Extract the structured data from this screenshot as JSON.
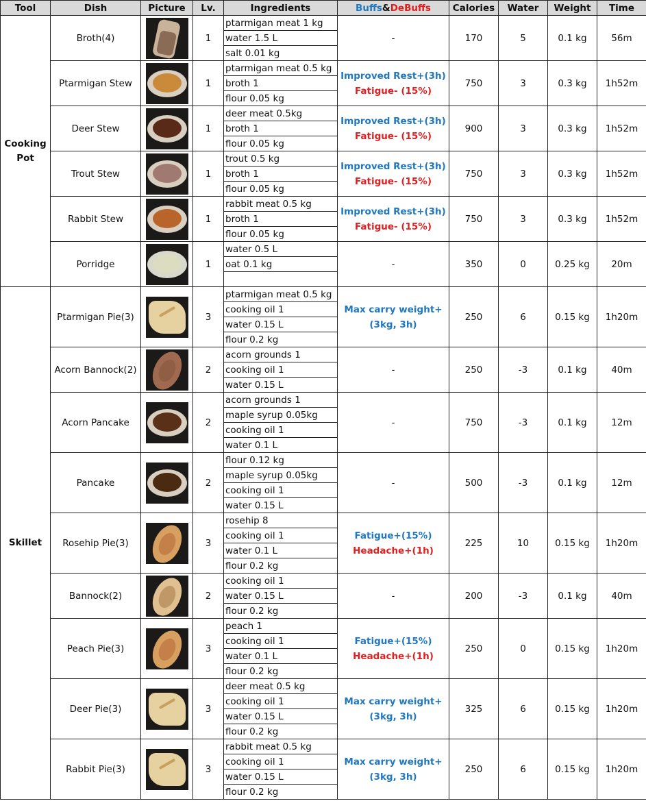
{
  "table": {
    "columns": [
      "Tool",
      "Dish",
      "Picture",
      "Lv.",
      "Ingredients",
      [
        "Buffs",
        "&",
        "DeBuffs"
      ],
      "Calories",
      "Water",
      "Weight",
      "Time"
    ],
    "groups": [
      {
        "tool": "Cooking Pot",
        "dishes": [
          {
            "name": "Broth(4)",
            "level": 1,
            "ingredients": [
              "ptarmigan meat 1 kg",
              "water 1.5 L",
              "salt 0.01 kg"
            ],
            "effects": [
              {
                "text": "-"
              }
            ],
            "calories": 170,
            "water": 5,
            "weight": "0.1 kg",
            "time": "56m"
          },
          {
            "name": "Ptarmigan Stew",
            "level": 1,
            "ingredients": [
              "ptarmigan meat 0.5 kg",
              "broth 1",
              "flour 0.05 kg"
            ],
            "effects": [
              {
                "text": "Improved Rest+(3h)",
                "kind": "buff"
              },
              {
                "text": "Fatigue- (15%)",
                "kind": "debuff"
              }
            ],
            "calories": 750,
            "water": 3,
            "weight": "0.3 kg",
            "time": "1h52m"
          },
          {
            "name": "Deer Stew",
            "level": 1,
            "ingredients": [
              "deer meat 0.5kg",
              "broth 1",
              "flour 0.05 kg"
            ],
            "effects": [
              {
                "text": "Improved Rest+(3h)",
                "kind": "buff"
              },
              {
                "text": "Fatigue- (15%)",
                "kind": "debuff"
              }
            ],
            "calories": 900,
            "water": 3,
            "weight": "0.3 kg",
            "time": "1h52m"
          },
          {
            "name": "Trout Stew",
            "level": 1,
            "ingredients": [
              "trout 0.5 kg",
              "broth 1",
              "flour 0.05 kg"
            ],
            "effects": [
              {
                "text": "Improved Rest+(3h)",
                "kind": "buff"
              },
              {
                "text": "Fatigue- (15%)",
                "kind": "debuff"
              }
            ],
            "calories": 750,
            "water": 3,
            "weight": "0.3 kg",
            "time": "1h52m"
          },
          {
            "name": "Rabbit Stew",
            "level": 1,
            "ingredients": [
              "rabbit meat 0.5 kg",
              "broth 1",
              "flour 0.05 kg"
            ],
            "effects": [
              {
                "text": "Improved Rest+(3h)",
                "kind": "buff"
              },
              {
                "text": "Fatigue- (15%)",
                "kind": "debuff"
              }
            ],
            "calories": 750,
            "water": 3,
            "weight": "0.3 kg",
            "time": "1h52m"
          },
          {
            "name": "Porridge",
            "level": 1,
            "ingredients": [
              "water 0.5 L",
              "oat 0.1 kg"
            ],
            "effects": [
              {
                "text": "-"
              }
            ],
            "calories": 350,
            "water": 0,
            "weight": "0.25 kg",
            "time": "20m"
          }
        ]
      },
      {
        "tool": "Skillet",
        "dishes": [
          {
            "name": "Ptarmigan Pie(3)",
            "level": 3,
            "ingredients": [
              "ptarmigan meat 0.5 kg",
              "cooking oil 1",
              "water 0.15 L",
              "flour 0.2 kg"
            ],
            "effects": [
              {
                "text": "Max carry weight+",
                "kind": "buff"
              },
              {
                "text": "(3kg, 3h)",
                "kind": "buff"
              }
            ],
            "calories": 250,
            "water": 6,
            "weight": "0.15 kg",
            "time": "1h20m"
          },
          {
            "name": "Acorn Bannock(2)",
            "level": 2,
            "ingredients": [
              "acorn grounds 1",
              "cooking oil 1",
              "water 0.15 L"
            ],
            "effects": [
              {
                "text": "-"
              }
            ],
            "calories": 250,
            "water": -3,
            "weight": "0.1 kg",
            "time": "40m"
          },
          {
            "name": "Acorn Pancake",
            "level": 2,
            "ingredients": [
              "acorn grounds 1",
              "maple syrup 0.05kg",
              "cooking oil 1",
              "water 0.1 L"
            ],
            "effects": [
              {
                "text": "-"
              }
            ],
            "calories": 750,
            "water": -3,
            "weight": "0.1 kg",
            "time": "12m"
          },
          {
            "name": "Pancake",
            "level": 2,
            "ingredients": [
              "flour 0.12 kg",
              "maple syrup 0.05kg",
              "cooking oil 1",
              "water 0.15 L"
            ],
            "effects": [
              {
                "text": "-"
              }
            ],
            "calories": 500,
            "water": -3,
            "weight": "0.1 kg",
            "time": "12m"
          },
          {
            "name": "Rosehip Pie(3)",
            "level": 3,
            "ingredients": [
              "rosehip 8",
              "cooking oil 1",
              "water 0.1 L",
              "flour 0.2 kg"
            ],
            "effects": [
              {
                "text": "Fatigue+(15%)",
                "kind": "buff"
              },
              {
                "text": "Headache+(1h)",
                "kind": "debuff"
              }
            ],
            "calories": 225,
            "water": 10,
            "weight": "0.15 kg",
            "time": "1h20m"
          },
          {
            "name": "Bannock(2)",
            "level": 2,
            "ingredients": [
              "cooking oil 1",
              "water 0.15 L",
              "flour 0.2 kg"
            ],
            "effects": [
              {
                "text": "-"
              }
            ],
            "calories": 200,
            "water": -3,
            "weight": "0.1 kg",
            "time": "40m"
          },
          {
            "name": "Peach Pie(3)",
            "level": 3,
            "ingredients": [
              "peach 1",
              "cooking oil 1",
              "water 0.1 L",
              "flour 0.2 kg"
            ],
            "effects": [
              {
                "text": "Fatigue+(15%)",
                "kind": "buff"
              },
              {
                "text": "Headache+(1h)",
                "kind": "debuff"
              }
            ],
            "calories": 250,
            "water": 0,
            "weight": "0.15 kg",
            "time": "1h20m"
          },
          {
            "name": "Deer Pie(3)",
            "level": 3,
            "ingredients": [
              "deer meat 0.5 kg",
              "cooking oil 1",
              "water 0.15 L",
              "flour 0.2 kg"
            ],
            "effects": [
              {
                "text": "Max carry weight+",
                "kind": "buff"
              },
              {
                "text": "(3kg, 3h)",
                "kind": "buff"
              }
            ],
            "calories": 325,
            "water": 6,
            "weight": "0.15 kg",
            "time": "1h20m"
          },
          {
            "name": "Rabbit Pie(3)",
            "level": 3,
            "ingredients": [
              "rabbit meat 0.5 kg",
              "cooking oil 1",
              "water 0.15 L",
              "flour 0.2 kg"
            ],
            "effects": [
              {
                "text": "Max carry weight+",
                "kind": "buff"
              },
              {
                "text": "(3kg, 3h)",
                "kind": "buff"
              }
            ],
            "calories": 250,
            "water": 6,
            "weight": "0.15 kg",
            "time": "1h20m"
          }
        ]
      }
    ]
  }
}
